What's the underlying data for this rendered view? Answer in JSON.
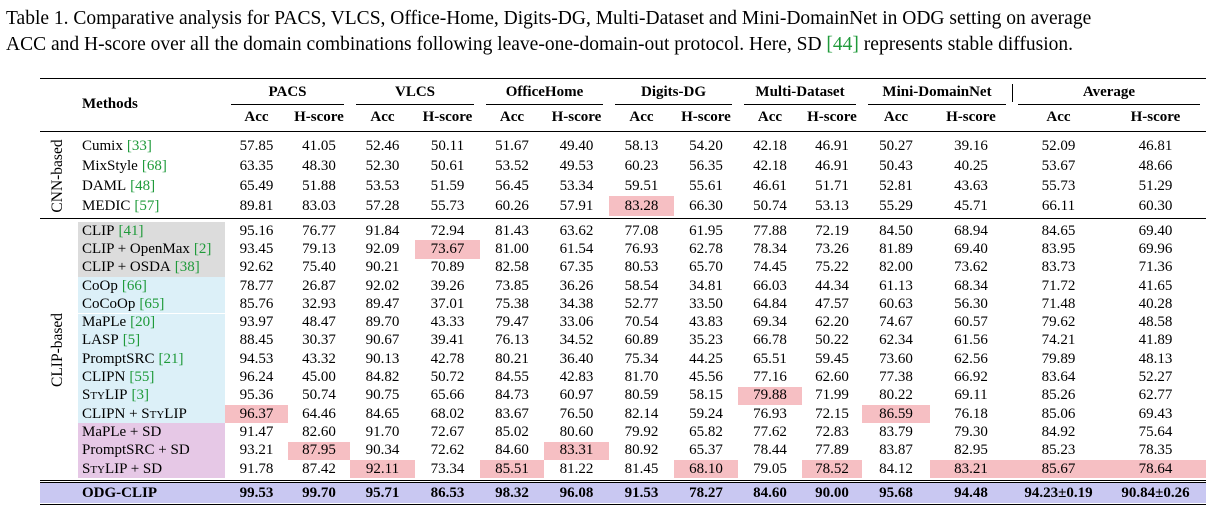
{
  "header": {
    "caption": {
      "line1": "Table 1. Comparative analysis for PACS, VLCS, Office-Home, Digits-DG, Multi-Dataset and Mini-DomainNet in ODG setting on average",
      "line2_before": "ACC and H-score over all the domain combinations following leave-one-domain-out protocol. Here, SD ",
      "line2_ref": "[44]",
      "line2_after": " represents stable diffusion."
    }
  },
  "table": {
    "methods_header": "Methods",
    "groups": [
      "PACS",
      "VLCS",
      "OfficeHome",
      "Digits-DG",
      "Multi-Dataset",
      "Mini-DomainNet",
      "Average"
    ],
    "subheaders": [
      "Acc",
      "H-score"
    ],
    "highlight_color": "#f6bfc3",
    "ref_color": "#1f9a3a",
    "sections": [
      {
        "label": "CNN-based",
        "rows": [
          {
            "method": "Cumix",
            "ref": "[33]",
            "values": [
              "57.85",
              "41.05",
              "52.46",
              "50.11",
              "51.67",
              "49.40",
              "58.13",
              "54.20",
              "42.18",
              "46.91",
              "50.27",
              "39.16",
              "52.09",
              "46.81"
            ]
          },
          {
            "method": "MixStyle",
            "ref": "[68]",
            "values": [
              "63.35",
              "48.30",
              "52.30",
              "50.61",
              "53.52",
              "49.53",
              "60.23",
              "56.35",
              "42.18",
              "46.91",
              "50.43",
              "40.25",
              "53.67",
              "48.66"
            ]
          },
          {
            "method": "DAML",
            "ref": "[48]",
            "values": [
              "65.49",
              "51.88",
              "53.53",
              "51.59",
              "56.45",
              "53.34",
              "59.51",
              "55.61",
              "46.61",
              "51.71",
              "52.81",
              "43.63",
              "55.73",
              "51.29"
            ]
          },
          {
            "method": "MEDIC",
            "ref": "[57]",
            "values": [
              "89.81",
              "83.03",
              "57.28",
              "55.73",
              "60.26",
              "57.91",
              "83.28",
              "66.30",
              "50.74",
              "53.13",
              "55.29",
              "45.71",
              "66.11",
              "60.30"
            ],
            "highlight": [
              6
            ]
          }
        ]
      },
      {
        "label": "CLIP-based",
        "rows": [
          {
            "method": "CLIP",
            "ref": "[41]",
            "bg": "#dcdcdc",
            "values": [
              "95.16",
              "76.77",
              "91.84",
              "72.94",
              "81.43",
              "63.62",
              "77.08",
              "61.95",
              "77.88",
              "72.19",
              "84.50",
              "68.94",
              "84.65",
              "69.40"
            ]
          },
          {
            "method": "CLIP + OpenMax",
            "ref": "[2]",
            "bg": "#dcdcdc",
            "values": [
              "93.45",
              "79.13",
              "92.09",
              "73.67",
              "81.00",
              "61.54",
              "76.93",
              "62.78",
              "78.34",
              "73.26",
              "81.89",
              "69.40",
              "83.95",
              "69.96"
            ],
            "highlight": [
              3
            ]
          },
          {
            "method": "CLIP + OSDA",
            "ref": "[38]",
            "bg": "#dcdcdc",
            "values": [
              "92.62",
              "75.40",
              "90.21",
              "70.89",
              "82.58",
              "67.35",
              "80.53",
              "65.70",
              "74.45",
              "75.22",
              "82.00",
              "73.62",
              "83.73",
              "71.36"
            ]
          },
          {
            "method": "CoOp",
            "ref": "[66]",
            "bg": "#dcf0f8",
            "values": [
              "78.77",
              "26.87",
              "92.02",
              "39.26",
              "73.85",
              "36.26",
              "58.54",
              "34.81",
              "66.03",
              "44.34",
              "61.13",
              "68.34",
              "71.72",
              "41.65"
            ]
          },
          {
            "method": "CoCoOp",
            "ref": "[65]",
            "bg": "#dcf0f8",
            "values": [
              "85.76",
              "32.93",
              "89.47",
              "37.01",
              "75.38",
              "34.38",
              "52.77",
              "33.50",
              "64.84",
              "47.57",
              "60.63",
              "56.30",
              "71.48",
              "40.28"
            ]
          },
          {
            "method": "MaPLe",
            "ref": "[20]",
            "bg": "#dcf0f8",
            "values": [
              "93.97",
              "48.47",
              "89.70",
              "43.33",
              "79.47",
              "33.06",
              "70.54",
              "43.83",
              "69.34",
              "62.20",
              "74.67",
              "60.57",
              "79.62",
              "48.58"
            ]
          },
          {
            "method": "LASP",
            "ref": "[5]",
            "bg": "#dcf0f8",
            "values": [
              "88.45",
              "30.37",
              "90.67",
              "39.41",
              "76.13",
              "34.52",
              "60.89",
              "35.23",
              "66.78",
              "50.22",
              "62.34",
              "61.56",
              "74.21",
              "41.89"
            ]
          },
          {
            "method": "PromptSRC",
            "ref": "[21]",
            "bg": "#dcf0f8",
            "values": [
              "94.53",
              "43.32",
              "90.13",
              "42.78",
              "80.21",
              "36.40",
              "75.34",
              "44.25",
              "65.51",
              "59.45",
              "73.60",
              "62.56",
              "79.89",
              "48.13"
            ]
          },
          {
            "method": "CLIPN",
            "ref": "[55]",
            "bg": "#dcf0f8",
            "values": [
              "96.24",
              "45.00",
              "84.82",
              "50.72",
              "84.55",
              "42.83",
              "81.70",
              "45.56",
              "77.16",
              "62.60",
              "77.38",
              "66.92",
              "83.64",
              "52.27"
            ]
          },
          {
            "method": "StyLIP",
            "ref": "[3]",
            "bg": "#dcf0f8",
            "smallcaps": true,
            "values": [
              "95.36",
              "50.74",
              "90.75",
              "65.66",
              "84.73",
              "60.97",
              "80.59",
              "58.15",
              "79.88",
              "71.99",
              "80.22",
              "69.11",
              "85.26",
              "62.77"
            ],
            "highlight": [
              8
            ]
          },
          {
            "method": "CLIPN + StyLIP",
            "bg": "#dcf0f8",
            "smallcaps": true,
            "values": [
              "96.37",
              "64.46",
              "84.65",
              "68.02",
              "83.67",
              "76.50",
              "82.14",
              "59.24",
              "76.93",
              "72.15",
              "86.59",
              "76.18",
              "85.06",
              "69.43"
            ],
            "highlight": [
              0,
              10
            ]
          },
          {
            "method": "MaPLe + SD",
            "bg": "#e6c8e6",
            "values": [
              "91.47",
              "82.60",
              "91.70",
              "72.67",
              "85.02",
              "80.60",
              "79.92",
              "65.82",
              "77.62",
              "72.83",
              "83.79",
              "79.30",
              "84.92",
              "75.64"
            ]
          },
          {
            "method": "PromptSRC + SD",
            "bg": "#e6c8e6",
            "values": [
              "93.21",
              "87.95",
              "90.34",
              "72.62",
              "84.60",
              "83.31",
              "80.92",
              "65.37",
              "78.44",
              "77.89",
              "83.87",
              "82.95",
              "85.23",
              "78.35"
            ],
            "highlight": [
              1,
              5
            ]
          },
          {
            "method": "StyLIP + SD",
            "bg": "#e6c8e6",
            "smallcaps": true,
            "values": [
              "91.78",
              "87.42",
              "92.11",
              "73.34",
              "85.51",
              "81.22",
              "81.45",
              "68.10",
              "79.05",
              "78.52",
              "84.12",
              "83.21",
              "85.67",
              "78.64"
            ],
            "highlight": [
              2,
              4,
              7,
              9,
              11,
              12,
              13
            ]
          }
        ]
      }
    ],
    "final_row": {
      "method": "ODG-CLIP",
      "bg": "#c9c8f2",
      "values": [
        "99.53",
        "99.70",
        "95.71",
        "86.53",
        "98.32",
        "96.08",
        "91.53",
        "78.27",
        "84.60",
        "90.00",
        "95.68",
        "94.48",
        "94.23±0.19",
        "90.84±0.26"
      ]
    }
  }
}
